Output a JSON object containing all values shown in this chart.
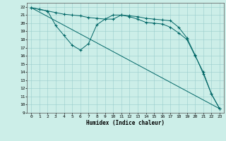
{
  "title": "",
  "xlabel": "Humidex (Indice chaleur)",
  "ylabel": "",
  "bg_color": "#cceee8",
  "grid_color": "#b0d8d0",
  "line_color": "#006666",
  "xlim": [
    -0.5,
    23.5
  ],
  "ylim": [
    9,
    22.5
  ],
  "xticks": [
    0,
    1,
    2,
    3,
    4,
    5,
    6,
    7,
    8,
    9,
    10,
    11,
    12,
    13,
    14,
    15,
    16,
    17,
    18,
    19,
    20,
    21,
    22,
    23
  ],
  "yticks": [
    9,
    10,
    11,
    12,
    13,
    14,
    15,
    16,
    17,
    18,
    19,
    20,
    21,
    22
  ],
  "line1_x": [
    0,
    1,
    2,
    3,
    4,
    5,
    6,
    7,
    8,
    9,
    10,
    11,
    12,
    13,
    14,
    15,
    16,
    17,
    18,
    19,
    20,
    21,
    22,
    23
  ],
  "line1_y": [
    21.9,
    21.7,
    21.5,
    21.3,
    21.1,
    21.0,
    20.9,
    20.7,
    20.6,
    20.5,
    21.0,
    21.0,
    20.9,
    20.8,
    20.6,
    20.5,
    20.4,
    20.3,
    19.5,
    18.2,
    16.1,
    13.8,
    11.3,
    9.5
  ],
  "line2_x": [
    0,
    1,
    2,
    3,
    4,
    5,
    6,
    7,
    8,
    9,
    10,
    11,
    12,
    13,
    14,
    15,
    16,
    17,
    18,
    19,
    20,
    21,
    22,
    23
  ],
  "line2_y": [
    21.9,
    21.7,
    21.5,
    19.7,
    18.5,
    17.3,
    16.7,
    17.5,
    19.8,
    20.5,
    20.5,
    21.0,
    20.8,
    20.5,
    20.1,
    20.0,
    19.9,
    19.5,
    18.8,
    18.0,
    16.0,
    14.0,
    11.3,
    9.5
  ],
  "line3_x": [
    0,
    23
  ],
  "line3_y": [
    21.9,
    9.5
  ],
  "dpi": 100,
  "figsize": [
    3.2,
    2.0
  ]
}
